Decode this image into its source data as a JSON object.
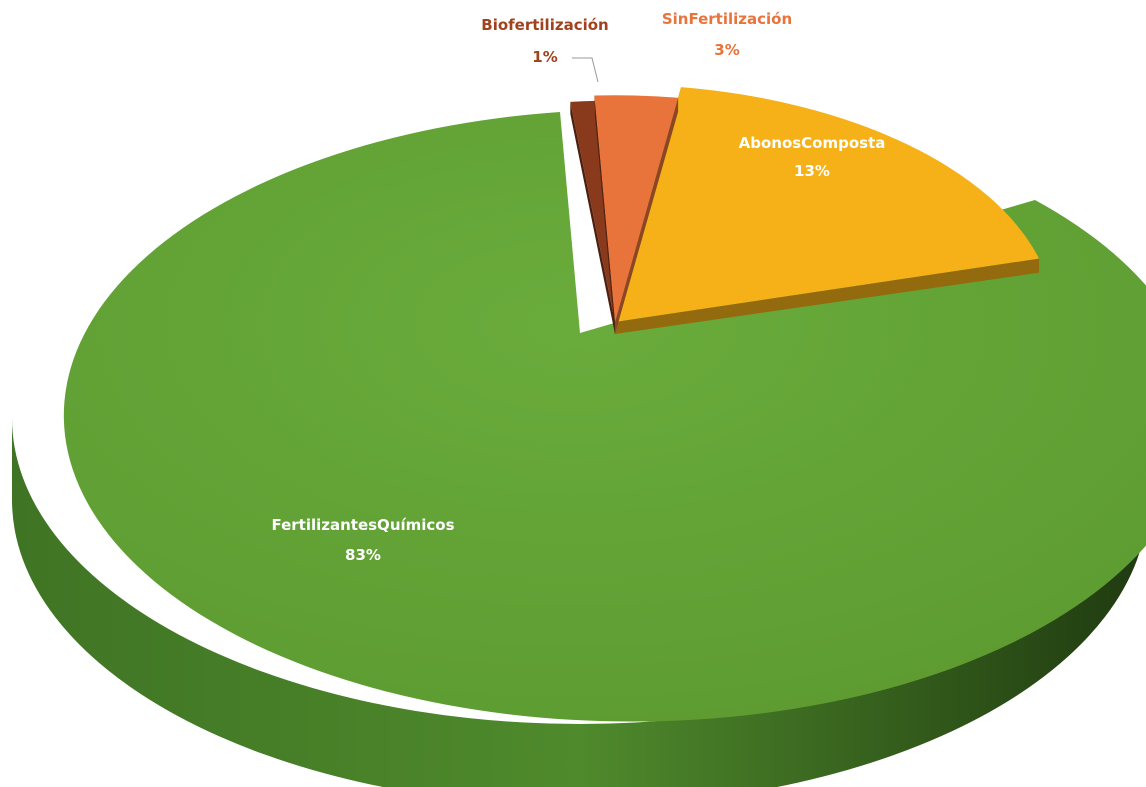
{
  "chart_data": {
    "type": "pie",
    "style": "3d-exploded",
    "slices": [
      {
        "category": "Biofertilización",
        "percent_label": "1%",
        "value": 1,
        "color": "#8a3a1c",
        "label_color": "#a0421e"
      },
      {
        "category": "SinFertilización",
        "percent_label": "3%",
        "value": 3,
        "color": "#e8743b",
        "label_color": "#e8743b"
      },
      {
        "category": "AbonosComposta",
        "percent_label": "13%",
        "value": 13,
        "color": "#f5b117",
        "label_color": "#ffffff"
      },
      {
        "category": "FertilizantesQuímicos",
        "percent_label": "83%",
        "value": 83,
        "color": "#62a234",
        "label_color": "#ffffff"
      }
    ]
  }
}
